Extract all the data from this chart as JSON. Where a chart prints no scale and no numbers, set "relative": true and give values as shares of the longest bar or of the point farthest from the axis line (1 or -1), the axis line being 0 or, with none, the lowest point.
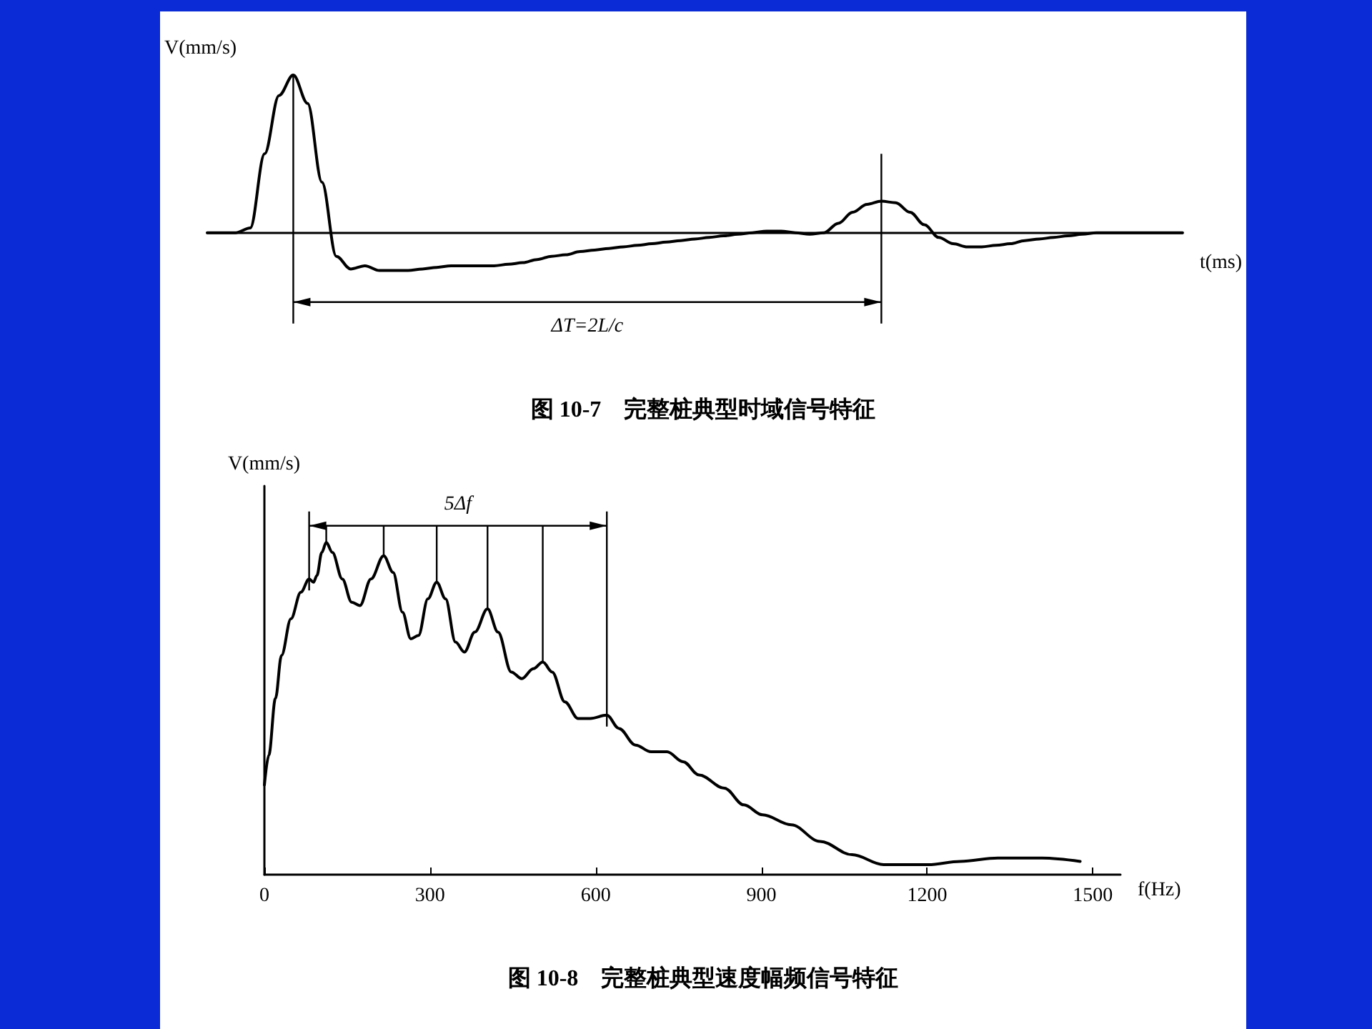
{
  "chart_data": [
    {
      "type": "line",
      "title": "图 10-7　完整桩典型时域信号特征",
      "xlabel": "t(ms)",
      "ylabel": "V(mm/s)",
      "relative": true,
      "tick_labels": false,
      "marker": "none",
      "annotations": [
        "ΔT=2L/c"
      ],
      "categories": [
        null,
        null,
        null,
        null,
        null,
        null,
        null,
        null,
        null,
        null,
        null,
        null,
        null,
        null,
        null,
        null,
        null,
        null,
        null,
        null,
        null,
        null,
        null,
        null,
        null,
        null,
        null,
        null,
        null,
        null,
        null,
        null,
        null,
        null,
        null,
        null,
        null,
        null,
        null,
        null,
        null,
        null,
        null,
        null,
        null,
        null,
        null,
        null,
        null,
        null,
        null,
        null,
        null,
        null,
        null,
        null,
        null,
        null,
        null,
        null,
        null,
        null,
        null,
        null,
        null,
        null,
        null,
        null,
        null
      ],
      "series": [
        {
          "color": "#000000",
          "values": [
            0,
            0,
            0,
            0.03,
            0.5,
            0.87,
            1,
            0.82,
            0.32,
            -0.15,
            -0.23,
            -0.21,
            -0.24,
            -0.24,
            -0.24,
            -0.23,
            -0.22,
            -0.21,
            -0.21,
            -0.21,
            -0.21,
            -0.2,
            -0.19,
            -0.17,
            -0.15,
            -0.14,
            -0.12,
            -0.11,
            -0.1,
            -0.09,
            -0.08,
            -0.07,
            -0.06,
            -0.05,
            -0.04,
            -0.03,
            -0.02,
            -0.01,
            0,
            0.01,
            0.01,
            0,
            -0.01,
            0,
            0.06,
            0.13,
            0.18,
            0.2,
            0.19,
            0.13,
            0.05,
            -0.03,
            -0.07,
            -0.09,
            -0.09,
            -0.08,
            -0.07,
            -0.05,
            -0.04,
            -0.03,
            -0.02,
            -0.01,
            0,
            0,
            0,
            0,
            0,
            0,
            0
          ]
        }
      ]
    },
    {
      "type": "line",
      "title": "图 10-8　完整桩典型速度幅频信号特征",
      "xlabel": "f(Hz)",
      "ylabel": "V(mm/s)",
      "relative": true,
      "tick_labels": "x",
      "marker": "none",
      "annotations": [
        "5Δf"
      ],
      "xlim": [
        0,
        1550
      ],
      "xticks": [
        0,
        300,
        600,
        900,
        1200,
        1500
      ],
      "series": [
        {
          "color": "#000000",
          "x": [
            0,
            8,
            20,
            31,
            48,
            66,
            81,
            89,
            95,
            104,
            112,
            123,
            141,
            158,
            173,
            193,
            216,
            233,
            250,
            265,
            279,
            296,
            312,
            328,
            346,
            362,
            381,
            404,
            423,
            447,
            466,
            487,
            504,
            521,
            544,
            568,
            590,
            620,
            642,
            672,
            700,
            729,
            758,
            787,
            833,
            868,
            902,
            954,
            1006,
            1064,
            1121,
            1179,
            1202,
            1260,
            1328,
            1408,
            1477
          ],
          "values": [
            0.27,
            0.36,
            0.53,
            0.66,
            0.77,
            0.85,
            0.89,
            0.88,
            0.9,
            0.97,
            1,
            0.97,
            0.89,
            0.82,
            0.81,
            0.89,
            0.96,
            0.91,
            0.79,
            0.71,
            0.72,
            0.83,
            0.88,
            0.83,
            0.7,
            0.67,
            0.73,
            0.8,
            0.73,
            0.61,
            0.59,
            0.62,
            0.64,
            0.61,
            0.52,
            0.47,
            0.47,
            0.48,
            0.44,
            0.39,
            0.37,
            0.37,
            0.34,
            0.3,
            0.26,
            0.21,
            0.18,
            0.15,
            0.1,
            0.06,
            0.03,
            0.03,
            0.03,
            0.04,
            0.05,
            0.05,
            0.04
          ]
        }
      ]
    }
  ]
}
